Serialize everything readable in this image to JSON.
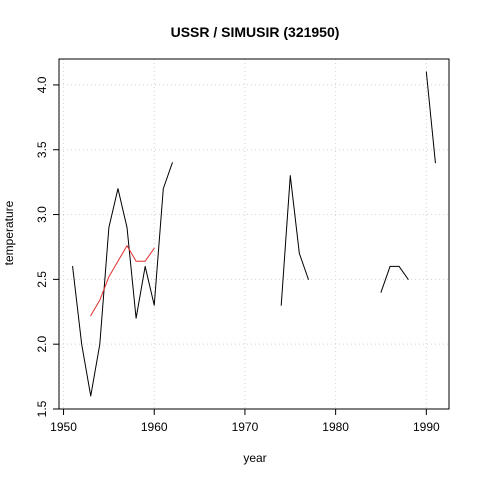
{
  "chart_data": {
    "type": "line",
    "title": "USSR / SIMUSIR (321950)",
    "xlabel": "year",
    "ylabel": "temperature",
    "xlim": [
      1949.5,
      1992.5
    ],
    "ylim": [
      1.5,
      4.2
    ],
    "x_ticks": [
      1950,
      1960,
      1970,
      1980,
      1990
    ],
    "y_ticks": [
      1.5,
      2.0,
      2.5,
      3.0,
      3.5,
      4.0
    ],
    "x_tick_labels": [
      "1950",
      "1960",
      "1970",
      "1980",
      "1990"
    ],
    "y_tick_labels": [
      "1.5",
      "2.0",
      "2.5",
      "3.0",
      "3.5",
      "4.0"
    ],
    "grid": true,
    "series": [
      {
        "color": "#000000",
        "segments": [
          [
            [
              1951,
              2.6
            ],
            [
              1952,
              2.0
            ],
            [
              1953,
              1.6
            ],
            [
              1954,
              2.0
            ],
            [
              1955,
              2.9
            ],
            [
              1956,
              3.2
            ],
            [
              1957,
              2.9
            ],
            [
              1958,
              2.2
            ],
            [
              1959,
              2.6
            ],
            [
              1960,
              2.3
            ],
            [
              1961,
              3.2
            ],
            [
              1962,
              3.4
            ]
          ],
          [
            [
              1974,
              2.3
            ],
            [
              1975,
              3.3
            ],
            [
              1976,
              2.7
            ],
            [
              1977,
              2.5
            ]
          ],
          [
            [
              1985,
              2.4
            ],
            [
              1986,
              2.6
            ],
            [
              1987,
              2.6
            ],
            [
              1988,
              2.5
            ]
          ],
          [
            [
              1990,
              4.1
            ],
            [
              1991,
              3.4
            ]
          ]
        ]
      },
      {
        "color": "#df2f2f",
        "segments": [
          [
            [
              1953,
              2.22
            ],
            [
              1954,
              2.34
            ],
            [
              1955,
              2.52
            ],
            [
              1956,
              2.64
            ],
            [
              1957,
              2.76
            ],
            [
              1958,
              2.64
            ],
            [
              1959,
              2.64
            ],
            [
              1960,
              2.74
            ]
          ]
        ]
      }
    ]
  }
}
